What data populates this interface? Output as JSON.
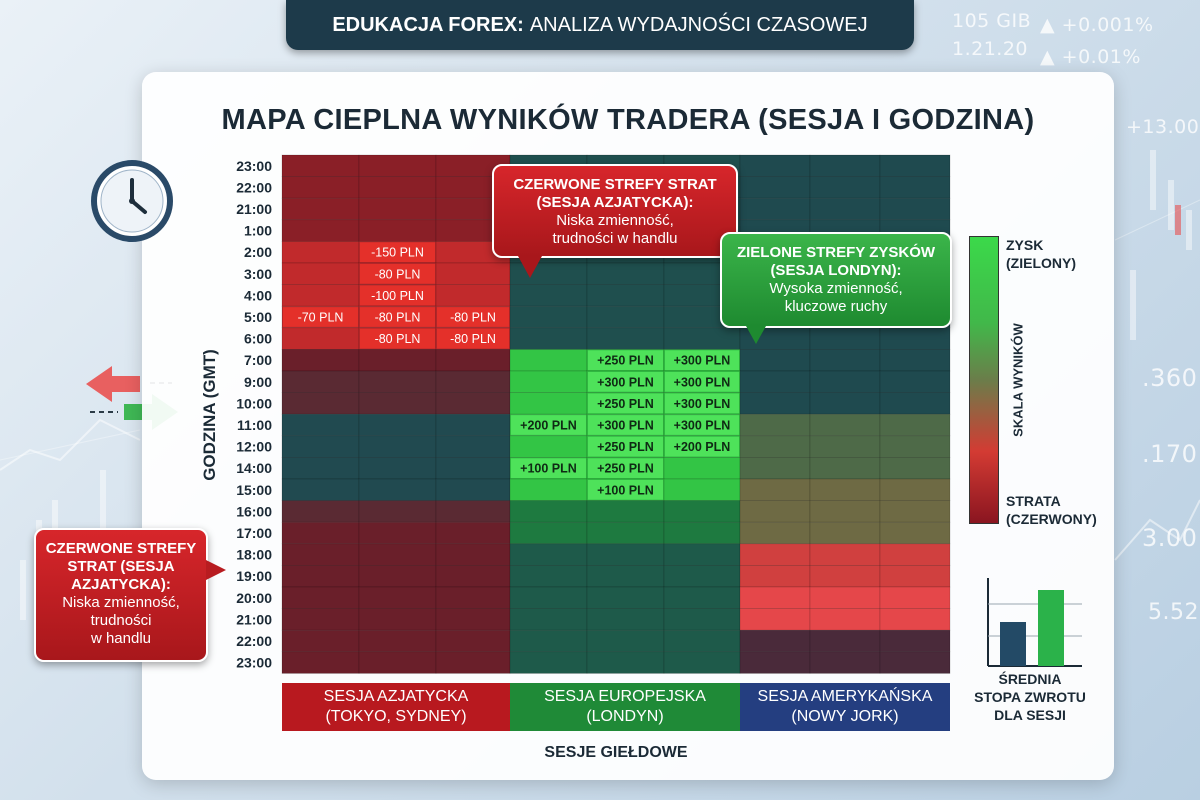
{
  "header": {
    "bold": "EDUKACJA FOREX:",
    "rest": "ANALIZA WYDAJNOŚCI CZASOWEJ"
  },
  "background_tickers": [
    "105 GIB",
    "▲ +0.001%",
    "1.21.20",
    "▲ +0.01%",
    "+13.00",
    ".360",
    ".170",
    "3.00",
    "5.52"
  ],
  "chart_data": {
    "type": "heatmap",
    "title": "MAPA CIEPLNA WYNIKÓW TRADERA (SESJA I GODZINA)",
    "ylabel": "GODZINA (GMT)",
    "xlabel": "SESJE GIEŁDOWE",
    "hours": [
      "23:00",
      "22:00",
      "21:00",
      "1:00",
      "2:00",
      "3:00",
      "4:00",
      "5:00",
      "6:00",
      "7:00",
      "9:00",
      "10:00",
      "11:00",
      "12:00",
      "14:00",
      "15:00",
      "16:00",
      "17:00",
      "18:00",
      "19:00",
      "20:00",
      "21:00",
      "22:00",
      "23:00"
    ],
    "sessions": [
      {
        "name": "SESJA AZJATYCKA",
        "sub": "(TOKYO, SYDNEY)",
        "color": "#b8191f"
      },
      {
        "name": "SESJA EUROPEJSKA",
        "sub": "(LONDYN)",
        "color": "#1f8a37"
      },
      {
        "name": "SESJA AMERYKAŃSKA",
        "sub": "(NOWY JORK)",
        "color": "#243e80"
      }
    ],
    "columns_per_session": 3,
    "cell_labels": [
      {
        "row": 4,
        "col": 1,
        "value": -150,
        "text": "-150 PLN"
      },
      {
        "row": 5,
        "col": 1,
        "value": -80,
        "text": "-80 PLN"
      },
      {
        "row": 6,
        "col": 1,
        "value": -100,
        "text": "-100 PLN"
      },
      {
        "row": 7,
        "col": 0,
        "value": -70,
        "text": "-70 PLN"
      },
      {
        "row": 7,
        "col": 1,
        "value": -80,
        "text": "-80 PLN"
      },
      {
        "row": 7,
        "col": 2,
        "value": -80,
        "text": "-80 PLN"
      },
      {
        "row": 8,
        "col": 1,
        "value": -80,
        "text": "-80 PLN"
      },
      {
        "row": 8,
        "col": 2,
        "value": -80,
        "text": "-80 PLN"
      },
      {
        "row": 9,
        "col": 4,
        "value": 250,
        "text": "+250 PLN"
      },
      {
        "row": 9,
        "col": 5,
        "value": 300,
        "text": "+300 PLN"
      },
      {
        "row": 10,
        "col": 4,
        "value": 300,
        "text": "+300 PLN"
      },
      {
        "row": 10,
        "col": 5,
        "value": 300,
        "text": "+300 PLN"
      },
      {
        "row": 11,
        "col": 4,
        "value": 250,
        "text": "+250 PLN"
      },
      {
        "row": 11,
        "col": 5,
        "value": 300,
        "text": "+300 PLN"
      },
      {
        "row": 12,
        "col": 3,
        "value": 200,
        "text": "+200 PLN"
      },
      {
        "row": 12,
        "col": 4,
        "value": 300,
        "text": "+300 PLN"
      },
      {
        "row": 12,
        "col": 5,
        "value": 300,
        "text": "+300 PLN"
      },
      {
        "row": 13,
        "col": 4,
        "value": 250,
        "text": "+250 PLN"
      },
      {
        "row": 13,
        "col": 5,
        "value": 200,
        "text": "+200 PLN"
      },
      {
        "row": 14,
        "col": 3,
        "value": 100,
        "text": "+100 PLN"
      },
      {
        "row": 14,
        "col": 4,
        "value": 250,
        "text": "+250 PLN"
      },
      {
        "row": 15,
        "col": 4,
        "value": 100,
        "text": "+100 PLN"
      }
    ],
    "legend": {
      "title": "SKALA WYNIKÓW",
      "top": "ZYSK\n(ZIELONY)",
      "bottom": "STRATA\n(CZERWONY)",
      "top_color": "#3bd94a",
      "bottom_color": "#8a1520"
    },
    "avg_bars": {
      "caption": "ŚREDNIA\nSTOPA ZWROTU\nDLA SESJI",
      "colors": [
        "#234a66",
        "#2bb24a"
      ]
    }
  },
  "callouts": {
    "top_red": {
      "title": "CZERWONE STREFY STRAT\n(SESJA AZJATYCKA):",
      "body": "Niska zmienność,\ntrudności w handlu"
    },
    "green": {
      "title": "ZIELONE STREFY ZYSKÓW\n(SESJA LONDYN):",
      "body": "Wysoka zmienność,\nkluczowe ruchy"
    },
    "left_red": {
      "title": "CZERWONE STREFY\nSTRAT (SESJA\nAZJATYCKA):",
      "body": "Niska zmienność,\ntrudności\nw handlu"
    }
  },
  "colors": {
    "loss_deep": "#7a1a22",
    "loss_bright": "#e0302c",
    "profit_bright": "#4ee25a",
    "neutral": "#1f4a4f"
  }
}
